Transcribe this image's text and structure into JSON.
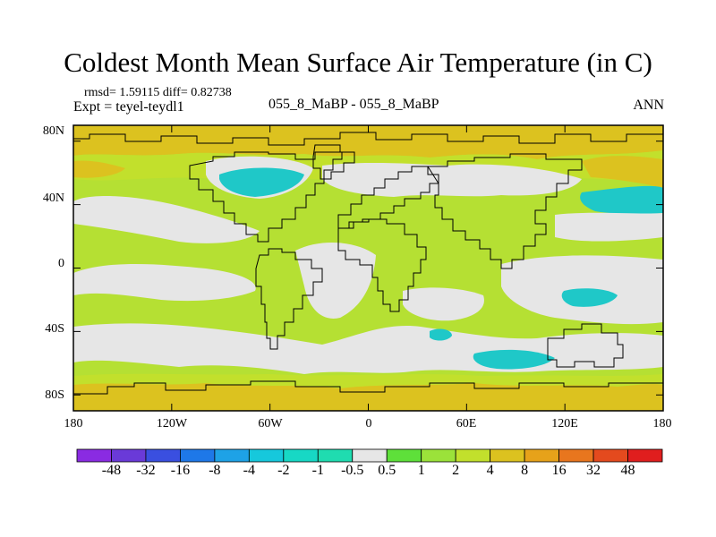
{
  "chart_data": {
    "type": "heatmap",
    "title": "Coldest Month Mean Surface Air Temperature (in C)",
    "stats_text": "rmsd= 1.59115 diff= 0.82738",
    "experiment_text": "Expt = teyel-teydl1",
    "center_label": "055_8_MaBP - 055_8_MaBP",
    "season": "ANN",
    "x_ticks": [
      "180",
      "120W",
      "60W",
      "0",
      "60E",
      "120E",
      "180"
    ],
    "x_range": [
      -180,
      180
    ],
    "y_ticks": [
      "80N",
      "40N",
      "0",
      "40S",
      "80S"
    ],
    "y_range": [
      -90,
      90
    ],
    "colorbar": {
      "labels": [
        "-48",
        "-32",
        "-16",
        "-8",
        "-4",
        "-2",
        "-1",
        "-0.5",
        "0.5",
        "1",
        "2",
        "4",
        "8",
        "16",
        "32",
        "48"
      ],
      "colors": [
        "#8a2be2",
        "#6a3ad8",
        "#3a4fe0",
        "#1e78e8",
        "#1ea2e6",
        "#16c8dc",
        "#17d8c5",
        "#1fdcb0",
        "#e6e6e6",
        "#5ee03a",
        "#9be23a",
        "#c2e02c",
        "#dcc21f",
        "#e6a21a",
        "#e8761e",
        "#e44a1e",
        "#e01e1e"
      ]
    },
    "regions": [
      {
        "name": "arctic-warm-band",
        "lon": [
          -180,
          180
        ],
        "lat": [
          70,
          90
        ],
        "value": 4
      },
      {
        "name": "north-atlantic-cool",
        "lon": [
          -110,
          -60
        ],
        "lat": [
          35,
          55
        ],
        "value": -2
      },
      {
        "name": "north-pacific-cool",
        "lon": [
          140,
          180
        ],
        "lat": [
          35,
          50
        ],
        "value": -1
      },
      {
        "name": "southern-ocean-cool",
        "lon": [
          60,
          120
        ],
        "lat": [
          -60,
          -45
        ],
        "value": -1
      },
      {
        "name": "tropical-pacific-neutral",
        "lon": [
          -180,
          -90
        ],
        "lat": [
          -30,
          20
        ],
        "value": 0
      },
      {
        "name": "indian-ocean-neutral",
        "lon": [
          50,
          100
        ],
        "lat": [
          -30,
          0
        ],
        "value": 0
      },
      {
        "name": "global-mild-warm",
        "lon": [
          -180,
          180
        ],
        "lat": [
          -90,
          90
        ],
        "value": 1
      }
    ]
  }
}
